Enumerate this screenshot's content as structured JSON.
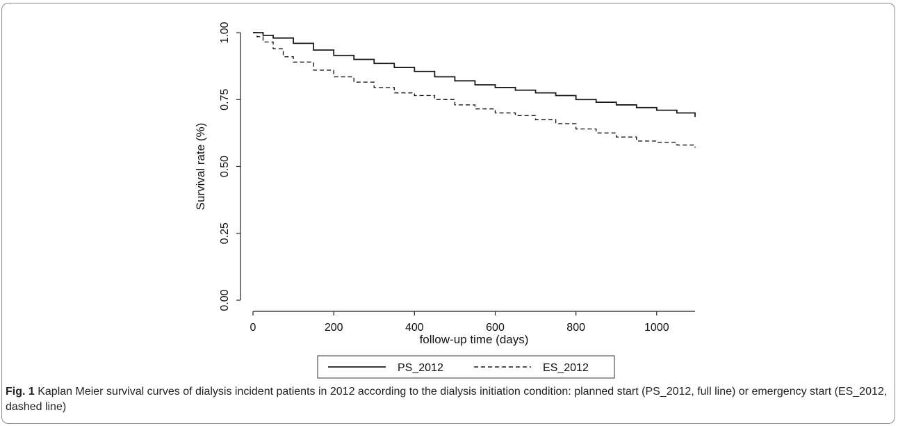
{
  "chart_data": {
    "type": "line",
    "xlabel": "follow-up time (days)",
    "ylabel": "Survival rate (%)",
    "xlim": [
      0,
      1095
    ],
    "ylim": [
      0,
      1
    ],
    "x_ticks": [
      0,
      200,
      400,
      600,
      800,
      1000
    ],
    "y_ticks": [
      0,
      0.25,
      0.5,
      0.75,
      1
    ],
    "x_tick_labels": [
      "0",
      "200",
      "400",
      "600",
      "800",
      "1000"
    ],
    "y_tick_labels": [
      "0.00",
      "0.25",
      "0.50",
      "0.75",
      "1.00"
    ],
    "grid": false,
    "legend_position": "bottom",
    "series": [
      {
        "name": "PS_2012",
        "line_style": "solid",
        "x": [
          0,
          25,
          50,
          100,
          150,
          200,
          250,
          300,
          350,
          400,
          450,
          500,
          550,
          600,
          650,
          700,
          750,
          800,
          850,
          900,
          950,
          1000,
          1050,
          1095
        ],
        "y": [
          1.0,
          0.99,
          0.98,
          0.96,
          0.935,
          0.915,
          0.9,
          0.885,
          0.87,
          0.855,
          0.835,
          0.82,
          0.805,
          0.795,
          0.785,
          0.775,
          0.765,
          0.75,
          0.74,
          0.73,
          0.72,
          0.71,
          0.7,
          0.685
        ]
      },
      {
        "name": "ES_2012",
        "line_style": "dashed",
        "x": [
          0,
          10,
          25,
          50,
          75,
          100,
          150,
          200,
          250,
          300,
          350,
          400,
          450,
          500,
          550,
          600,
          650,
          700,
          750,
          800,
          850,
          900,
          950,
          1000,
          1050,
          1095
        ],
        "y": [
          1.0,
          0.985,
          0.965,
          0.94,
          0.91,
          0.89,
          0.86,
          0.835,
          0.815,
          0.795,
          0.775,
          0.765,
          0.75,
          0.73,
          0.715,
          0.7,
          0.69,
          0.675,
          0.66,
          0.64,
          0.625,
          0.61,
          0.595,
          0.59,
          0.58,
          0.57
        ]
      }
    ]
  },
  "caption": {
    "label": "Fig. 1",
    "text": " Kaplan Meier survival curves of dialysis incident patients in 2012 according to the dialysis initiation condition: planned start (PS_2012, full line) or emergency start (ES_2012, dashed line)"
  }
}
